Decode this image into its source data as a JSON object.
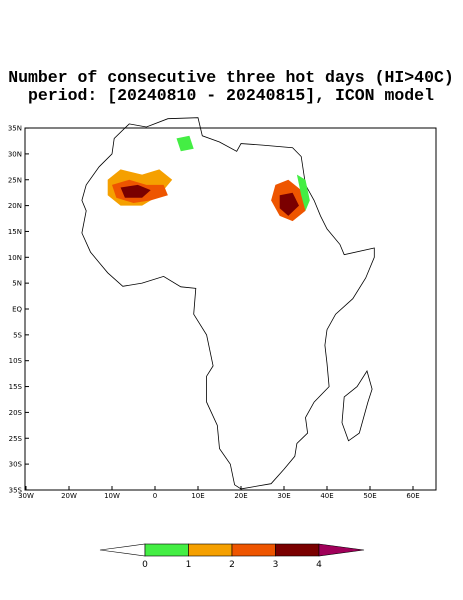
{
  "map": {
    "title": "Number of consecutive three hot days (HI>40C)",
    "subtitle": "period: [20240810 - 20240815], ICON model",
    "lon_ticks": [
      {
        "value": -30,
        "label": "30W"
      },
      {
        "value": -20,
        "label": "20W"
      },
      {
        "value": -10,
        "label": "10W"
      },
      0,
      {
        "value": 10,
        "label": "10E"
      },
      {
        "value": 20,
        "label": "20E"
      },
      {
        "value": 30,
        "label": "30E"
      },
      {
        "value": 40,
        "label": "40E"
      },
      {
        "value": 50,
        "label": "50E"
      },
      {
        "value": 60,
        "label": "60E"
      }
    ],
    "lat_ticks": [
      {
        "value": 35,
        "label": "35N"
      },
      {
        "value": 30,
        "label": "30N"
      },
      {
        "value": 25,
        "label": "25N"
      },
      {
        "value": 20,
        "label": "20N"
      },
      {
        "value": 15,
        "label": "15N"
      },
      {
        "value": 10,
        "label": "10N"
      },
      {
        "value": 5,
        "label": "5N"
      },
      {
        "value": 0,
        "label": "EQ"
      },
      {
        "value": -5,
        "label": "5S"
      },
      {
        "value": -10,
        "label": "10S"
      },
      {
        "value": -15,
        "label": "15S"
      },
      {
        "value": -20,
        "label": "20S"
      },
      {
        "value": -25,
        "label": "25S"
      },
      {
        "value": -30,
        "label": "30S"
      },
      {
        "value": -35,
        "label": "35S"
      }
    ],
    "colorbar": {
      "levels": [
        0,
        1,
        2,
        3,
        4
      ],
      "colors": [
        "#ffffff",
        "#44ee44",
        "#f5a000",
        "#ee5500",
        "#7a0000",
        "#a0005a"
      ]
    }
  }
}
